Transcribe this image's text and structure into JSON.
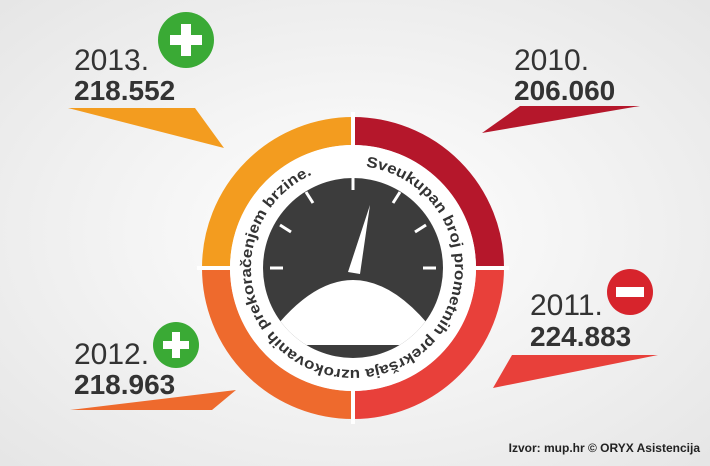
{
  "items": [
    {
      "year": "2013.",
      "value": "218.552"
    },
    {
      "year": "2010.",
      "value": "206.060"
    },
    {
      "year": "2011.",
      "value": "224.883"
    },
    {
      "year": "2012.",
      "value": "218.963"
    }
  ],
  "center_text": "Sveukupan broj prometnih prekršaja uzrokovanih prekoračenjem brzine.",
  "source": "Izvor: mup.hr © ORYX Asistencija"
}
